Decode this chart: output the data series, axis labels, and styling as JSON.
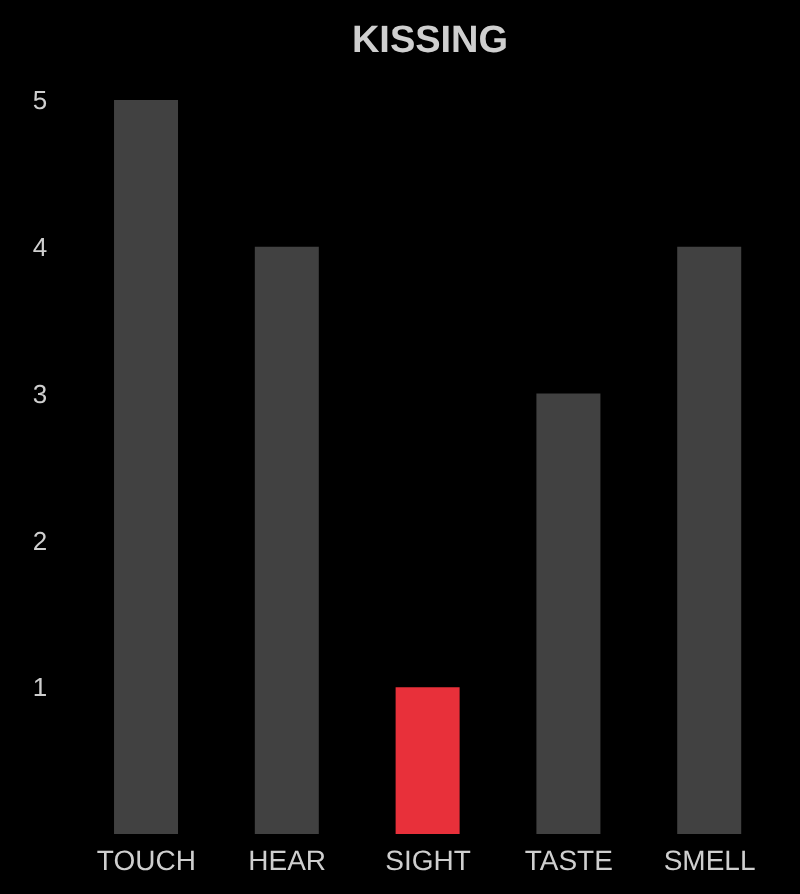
{
  "chart_data": {
    "type": "bar",
    "title": "KISSING",
    "categories": [
      "TOUCH",
      "HEAR",
      "SIGHT",
      "TASTE",
      "SMELL"
    ],
    "values": [
      5,
      4,
      1,
      3,
      4
    ],
    "colors": [
      "#414141",
      "#414141",
      "#e8303a",
      "#414141",
      "#414141"
    ],
    "ylim": [
      0,
      5
    ],
    "yticks": [
      1,
      2,
      3,
      4,
      5
    ],
    "grid": false,
    "legend": false
  }
}
